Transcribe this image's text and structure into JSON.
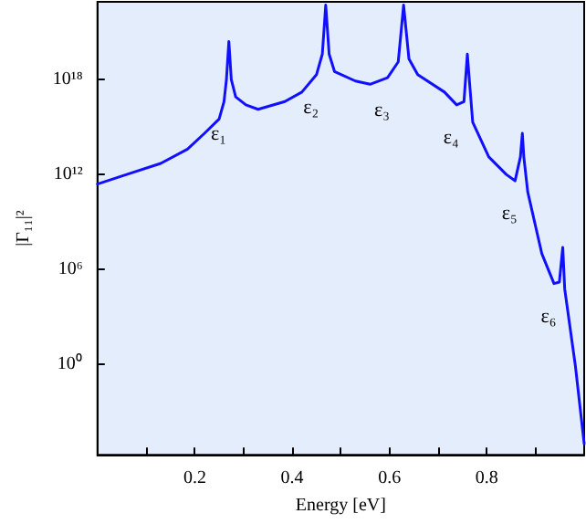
{
  "chart_data": {
    "type": "line",
    "xlabel": "Energy [eV]",
    "ylabel": "|Γ₁₁|²",
    "log": "y",
    "grid": false,
    "marker": "none",
    "line_style": "solid",
    "xlim": [
      0,
      1
    ],
    "xticks": [
      {
        "value": 0.1,
        "label": null
      },
      0.2,
      {
        "value": 0.3,
        "label": null
      },
      0.4,
      {
        "value": 0.5,
        "label": null
      },
      0.6,
      {
        "value": 0.7,
        "label": null
      },
      0.8,
      {
        "value": 0.9,
        "label": null
      }
    ],
    "ylim": [
      2e-06,
      8e+22
    ],
    "yticks": [
      {
        "value": 1,
        "label": "10⁰"
      },
      {
        "value": 1000000.0,
        "label": "10⁶"
      },
      {
        "value": 1000000000000.0,
        "label": "10¹²"
      },
      {
        "value": 1e+18,
        "label": "10¹⁸"
      }
    ],
    "series": [
      {
        "color": "#1010ff",
        "x": [
          0,
          0.06,
          0.13,
          0.185,
          0.22,
          0.25,
          0.26,
          0.265,
          0.27,
          0.275,
          0.284,
          0.305,
          0.33,
          0.385,
          0.42,
          0.45,
          0.462,
          0.469,
          0.476,
          0.487,
          0.53,
          0.56,
          0.596,
          0.618,
          0.629,
          0.64,
          0.658,
          0.713,
          0.738,
          0.753,
          0.76,
          0.764,
          0.771,
          0.804,
          0.84,
          0.858,
          0.869,
          0.873,
          0.876,
          0.884,
          0.913,
          0.938,
          0.949,
          0.956,
          0.96,
          0.982,
          1.0
        ],
        "values": [
          250000000000.0,
          1000000000000.0,
          5000000000000.0,
          40000000000000.0,
          400000000000000.0,
          3200000000000000.0,
          4e+16,
          1e+18,
          2.5e+20,
          1e+18,
          8e+16,
          2.5e+16,
          1.3e+16,
          4e+16,
          1.6e+17,
          2e+18,
          4e+19,
          5e+22,
          4e+19,
          3.2e+18,
          8e+17,
          5e+17,
          1.3e+18,
          1.3e+19,
          5e+22,
          2e+19,
          2e+18,
          1.6e+17,
          2.5e+16,
          4e+16,
          4e+19,
          1e+18,
          2000000000000000.0,
          13000000000000.0,
          1000000000000.0,
          400000000000.0,
          13000000000000.0,
          400000000000000.0,
          13000000000000.0,
          80000000000.0,
          10000000.0,
          130000.0,
          160000.0,
          25000000.0,
          60000.0,
          0.8,
          1e-05
        ]
      }
    ],
    "annotations": [
      "ε₁",
      "ε₂",
      "ε₃",
      "ε₄",
      "ε₅",
      "ε₆"
    ]
  }
}
